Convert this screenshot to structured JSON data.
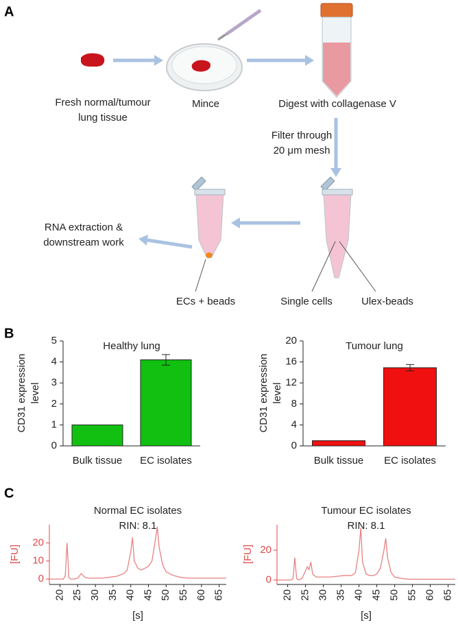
{
  "panels": [
    "A",
    "B",
    "C"
  ],
  "diagram": {
    "steps": {
      "tissue": [
        "Fresh normal/tumour",
        "lung tissue"
      ],
      "mince": "Mince",
      "digest": "Digest with collagenase V",
      "filter": [
        "Filter through",
        "20 μm mesh"
      ],
      "rna": [
        "RNA extraction &",
        "downstream work"
      ],
      "ecs": "ECs + beads",
      "single_cells": "Single cells",
      "ulex": "Ulex-beads"
    }
  },
  "chart_data": [
    {
      "type": "bar",
      "title": "Healthy lung",
      "ylabel": [
        "CD31 expression",
        "level"
      ],
      "categories": [
        "Bulk tissue",
        "EC isolates"
      ],
      "values": [
        1,
        4.1
      ],
      "errors": [
        null,
        0.25
      ],
      "color": "#11c011",
      "ylim": [
        0,
        5
      ],
      "yticks": [
        0,
        1,
        2,
        3,
        4,
        5
      ]
    },
    {
      "type": "bar",
      "title": "Tumour lung",
      "ylabel": [
        "CD31 expression",
        "level"
      ],
      "categories": [
        "Bulk tissue",
        "EC isolates"
      ],
      "values": [
        1,
        14.9
      ],
      "errors": [
        null,
        0.6
      ],
      "color": "#f01010",
      "ylim": [
        0,
        20
      ],
      "yticks": [
        0,
        4,
        8,
        12,
        16,
        20
      ]
    },
    {
      "type": "line",
      "title": "Normal EC isolates",
      "subtitle": "RIN: 8.1",
      "xlabel": "[s]",
      "ylabel": "[FU]",
      "x": [
        17,
        18,
        19,
        20,
        21,
        21.5,
        22,
        22.5,
        23,
        24,
        25,
        26,
        27,
        28,
        30,
        32,
        34,
        36,
        38,
        39,
        40,
        40.5,
        41,
        42,
        43,
        44,
        45,
        46,
        47,
        47.5,
        48,
        49,
        50,
        52,
        54,
        56,
        58,
        60,
        62,
        64,
        66,
        67
      ],
      "values": [
        0,
        0,
        0,
        0,
        0,
        2,
        20,
        1,
        0,
        0,
        0.5,
        3,
        1,
        0.5,
        0.5,
        0.5,
        1,
        1.5,
        3,
        5,
        15,
        23,
        10,
        6,
        5,
        6,
        7,
        10,
        22,
        29,
        18,
        8,
        4,
        2,
        1,
        0.5,
        0.5,
        0.5,
        0.5,
        0.5,
        0.5,
        0.5
      ],
      "color": "#e88080",
      "axis_color": "#e04848",
      "xlim": [
        17,
        67
      ],
      "xticks": [
        20,
        25,
        30,
        35,
        40,
        45,
        50,
        55,
        60,
        65
      ],
      "ylim": [
        -3,
        30
      ],
      "yticks": [
        0,
        10,
        20
      ]
    },
    {
      "type": "line",
      "title": "Tumour EC isolates",
      "subtitle": "RIN: 8.1",
      "xlabel": "[s]",
      "ylabel": "[FU]",
      "x": [
        17,
        18,
        19,
        20,
        21,
        21.5,
        22,
        22.5,
        23,
        24,
        25,
        25.5,
        26,
        26.5,
        27,
        28,
        30,
        32,
        34,
        36,
        38,
        39,
        40,
        40.5,
        41,
        42,
        43,
        44,
        45,
        46,
        47,
        47.5,
        48,
        49,
        50,
        52,
        54,
        56,
        58,
        60,
        62,
        64,
        66,
        67
      ],
      "values": [
        0,
        0,
        0,
        0,
        0,
        1,
        15,
        1,
        0,
        1,
        6,
        9,
        7,
        12,
        4,
        2,
        2,
        2,
        2.5,
        3,
        3,
        5,
        20,
        35,
        12,
        4,
        3,
        3,
        4,
        8,
        20,
        28,
        15,
        5,
        2,
        1,
        0.5,
        0.5,
        0.5,
        0.5,
        0.5,
        0.5,
        0.5,
        0.5
      ],
      "color": "#e88080",
      "axis_color": "#e04848",
      "xlim": [
        17,
        67
      ],
      "xticks": [
        20,
        25,
        30,
        35,
        40,
        45,
        50,
        55,
        60,
        65
      ],
      "ylim": [
        -3,
        37
      ],
      "yticks": [
        0,
        20
      ]
    }
  ]
}
